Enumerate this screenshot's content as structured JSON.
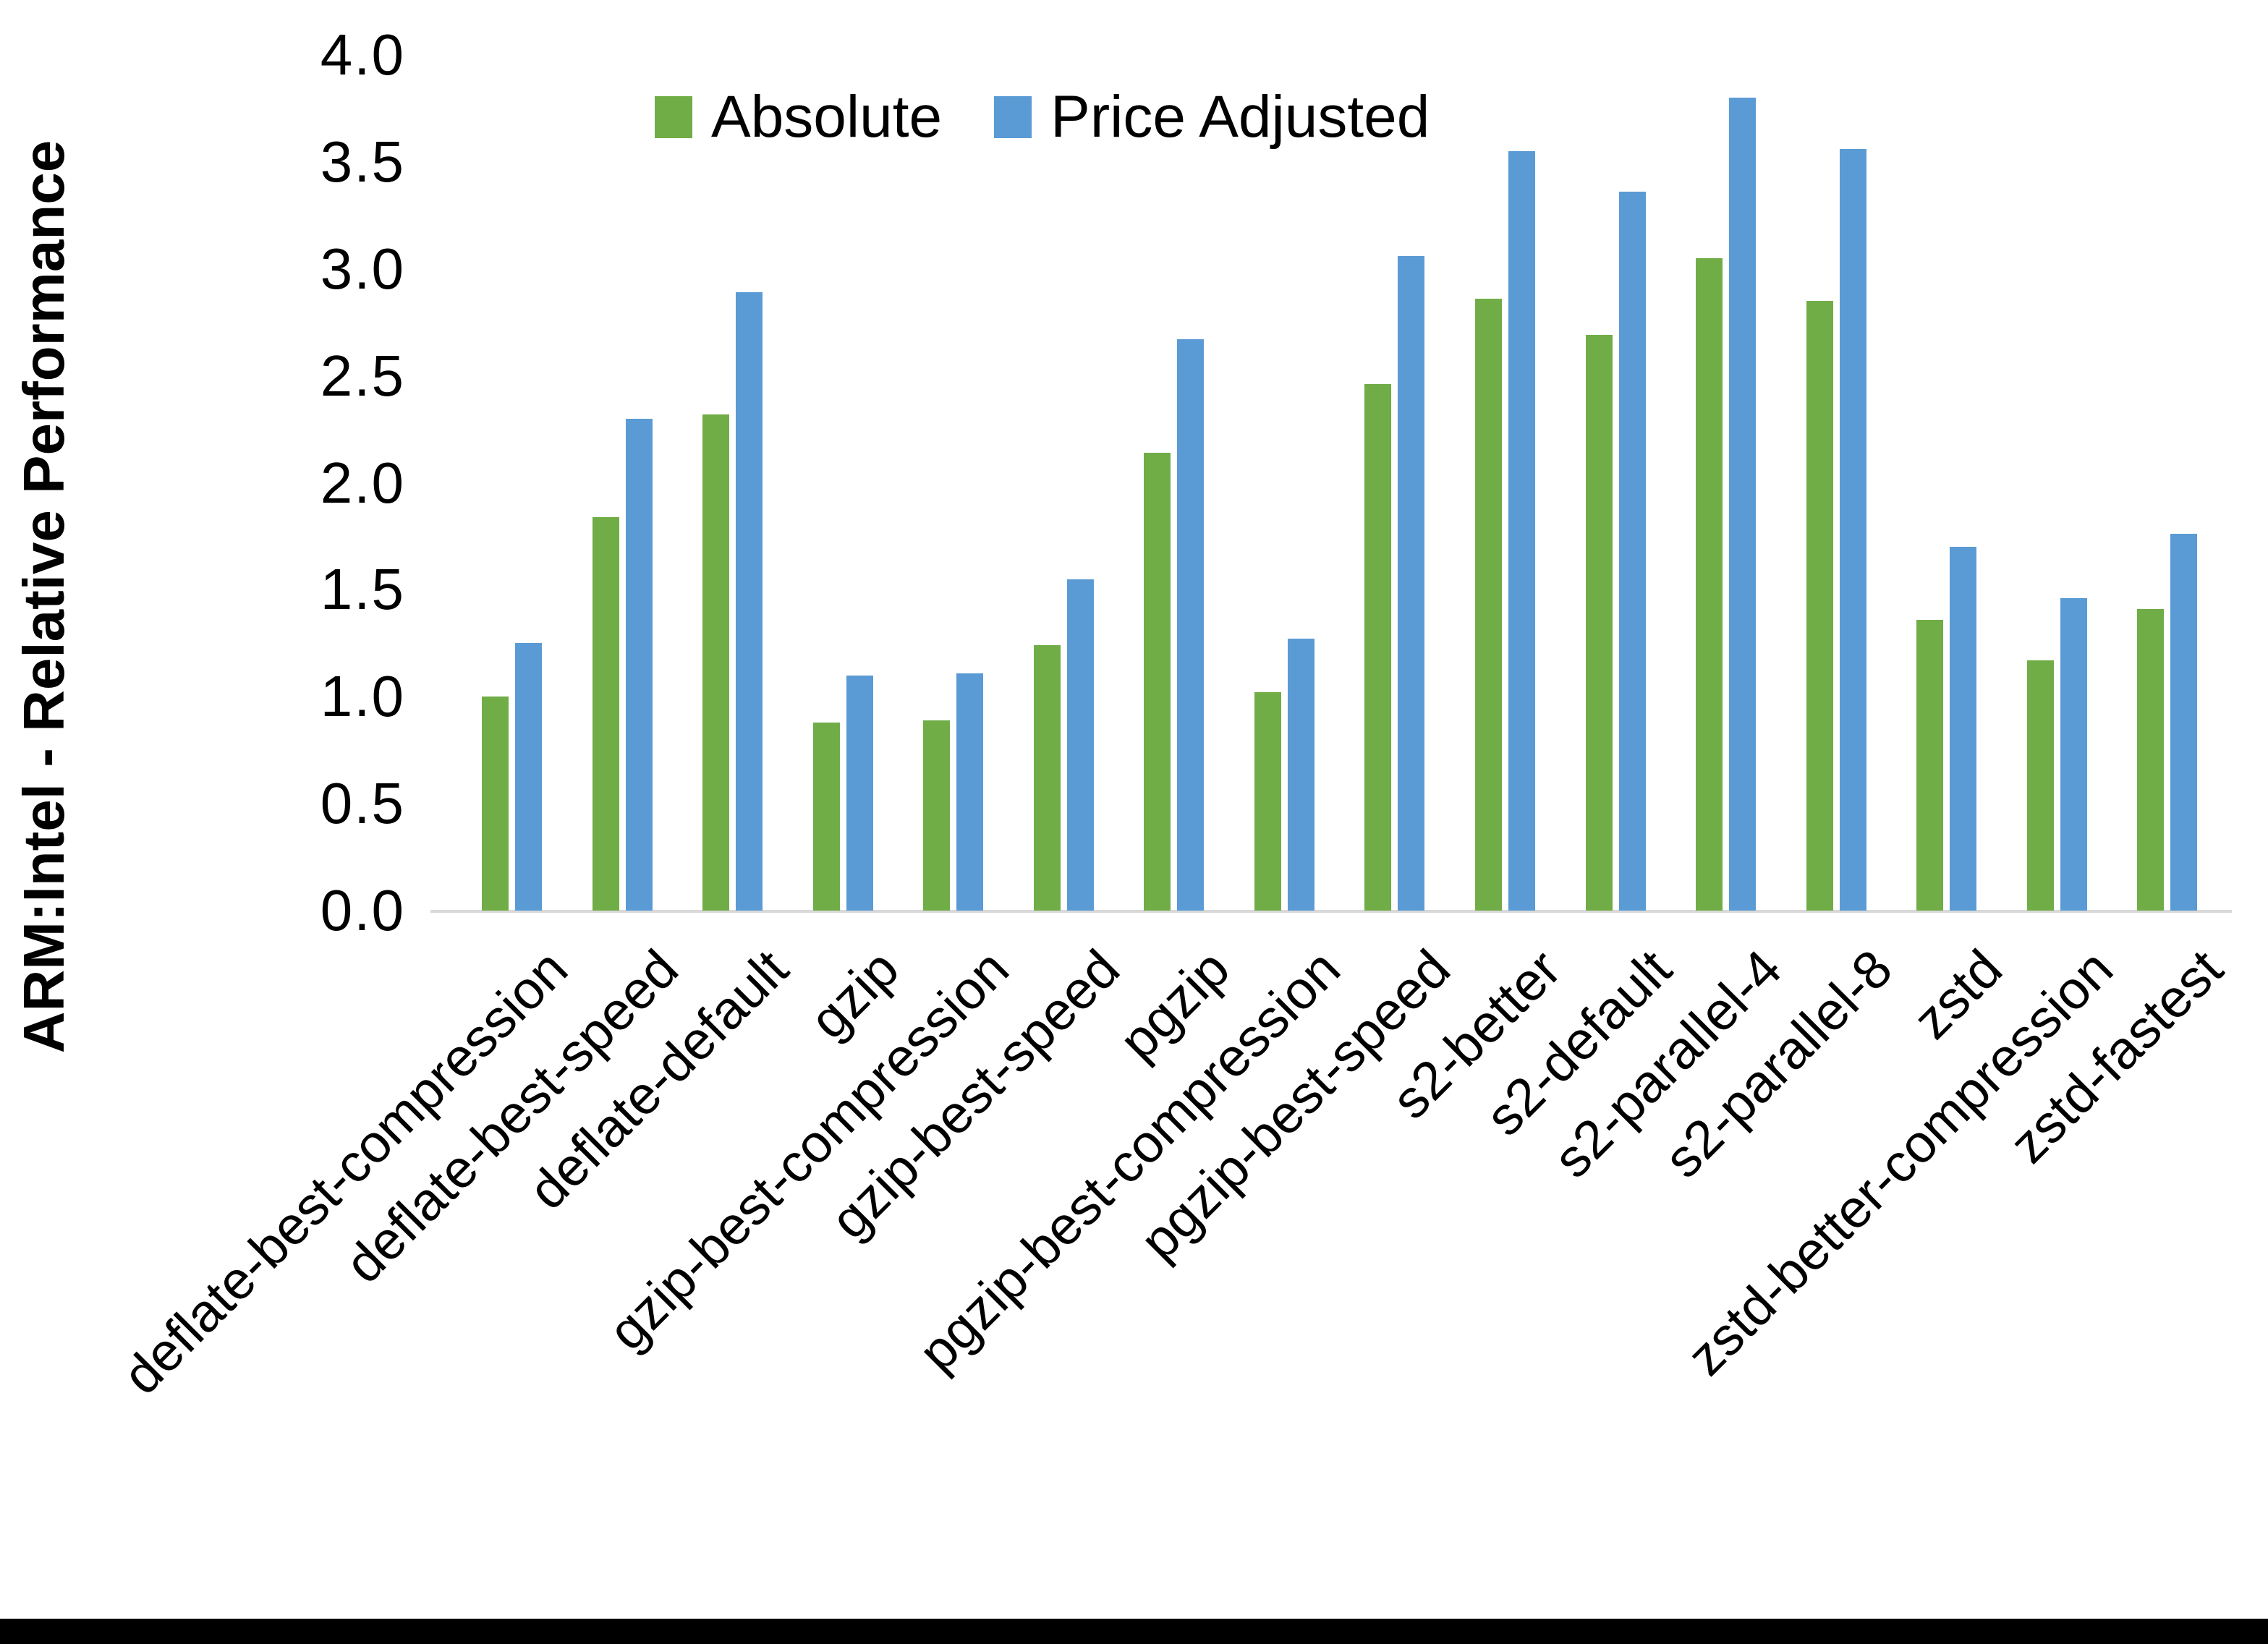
{
  "chart_data": {
    "type": "bar",
    "title": "",
    "ylabel": "ARM:Intel - Relative Performance",
    "xlabel": "",
    "ylim": [
      0.0,
      4.0
    ],
    "ytick_step": 0.5,
    "ytick_labels_top_to_bottom": [
      "4.0",
      "3.5",
      "3.0",
      "2.5",
      "2.0",
      "1.5",
      "1.0",
      "0.5",
      "0.0"
    ],
    "grid": false,
    "legend_position": "top-center",
    "axis_line_color": "#d9d9d9",
    "categories": [
      "deflate-best-compression",
      "deflate-best-speed",
      "deflate-default",
      "gzip",
      "gzip-best-compression",
      "gzip-best-speed",
      "pgzip",
      "pgzip-best-compression",
      "pgzip-best-speed",
      "s2-better",
      "s2-default",
      "s2-parallel-4",
      "s2-parallel-8",
      "zstd",
      "zstd-better-compression",
      "zstd-fastest"
    ],
    "series": [
      {
        "name": "Absolute",
        "color": "#70AD47",
        "values": [
          1.0,
          1.84,
          2.32,
          0.88,
          0.89,
          1.24,
          2.14,
          1.02,
          2.46,
          2.86,
          2.69,
          3.05,
          2.85,
          1.36,
          1.17,
          1.41
        ]
      },
      {
        "name": "Price Adjusted",
        "color": "#5B9BD5",
        "values": [
          1.25,
          2.3,
          2.89,
          1.1,
          1.11,
          1.55,
          2.67,
          1.27,
          3.06,
          3.55,
          3.36,
          3.8,
          3.56,
          1.7,
          1.46,
          1.76
        ]
      }
    ]
  }
}
